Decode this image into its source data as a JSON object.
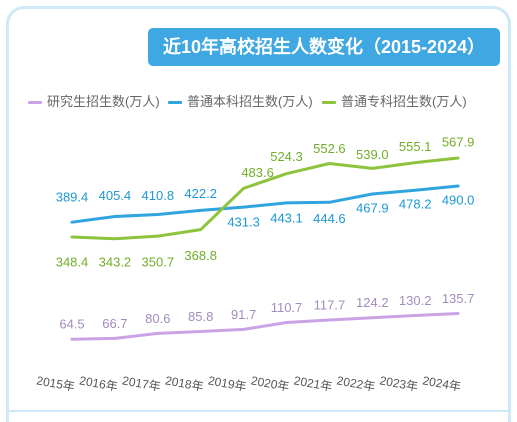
{
  "chart_data": {
    "type": "line",
    "title": "近10年高校招生人数变化（2015-2024）",
    "categories": [
      "2015年",
      "2016年",
      "2017年",
      "2018年",
      "2019年",
      "2020年",
      "2021年",
      "2022年",
      "2023年",
      "2024年"
    ],
    "series": [
      {
        "name": "研究生招生数(万人)",
        "color": "#c9a3e6",
        "label_color": "#a38cbd",
        "values": [
          64.5,
          66.7,
          80.6,
          85.8,
          91.7,
          110.7,
          117.7,
          124.2,
          130.2,
          135.7
        ]
      },
      {
        "name": "普通本科招生数(万人)",
        "color": "#2fa4de",
        "label_color": "#1d98d4",
        "values": [
          389.4,
          405.4,
          410.8,
          422.2,
          431.3,
          443.1,
          444.6,
          467.9,
          478.2,
          490.0
        ]
      },
      {
        "name": "普通专科招生数(万人)",
        "color": "#8cc43e",
        "label_color": "#72ad2a",
        "values": [
          348.4,
          343.2,
          350.7,
          368.8,
          483.6,
          524.3,
          552.6,
          539.0,
          555.1,
          567.9
        ]
      }
    ],
    "legend": "top-left",
    "grid": false,
    "data_labels": true
  },
  "theme": {
    "banner_color": "#3fa7e1",
    "card_border_color": "#cde8f7"
  }
}
